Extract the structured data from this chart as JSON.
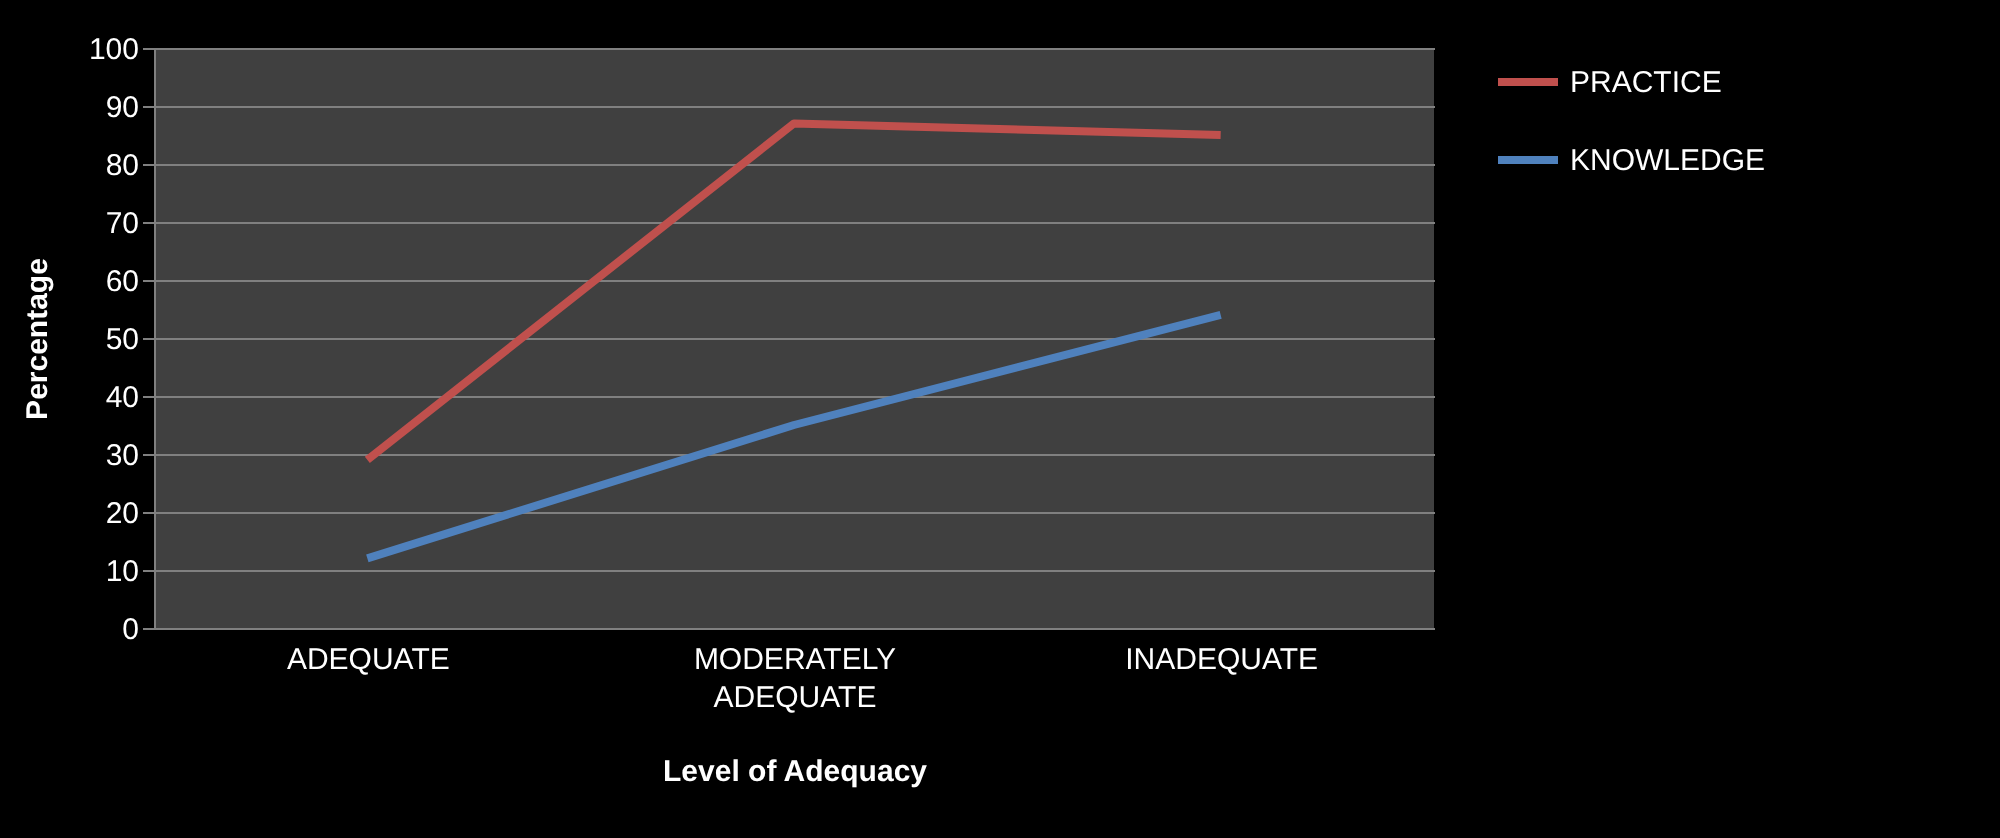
{
  "chart_data": {
    "type": "line",
    "xlabel": "Level of Adequacy",
    "ylabel": "Percentage",
    "categories": [
      "ADEQUATE",
      "MODERATELY ADEQUATE",
      "INADEQUATE"
    ],
    "series": [
      {
        "name": "PRACTICE",
        "color": "#c0504d",
        "values": [
          29,
          87,
          85
        ]
      },
      {
        "name": "KNOWLEDGE",
        "color": "#4f81bd",
        "values": [
          12,
          35,
          54
        ]
      }
    ],
    "ylim": [
      0,
      100
    ],
    "yticks": [
      0,
      10,
      20,
      30,
      40,
      50,
      60,
      70,
      80,
      90,
      100
    ],
    "grid": "y",
    "legend": "right",
    "marker": "none",
    "line_style": "solid"
  }
}
